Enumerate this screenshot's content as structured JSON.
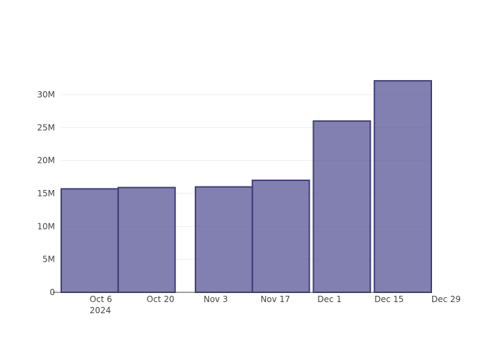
{
  "chart_data": {
    "type": "bar",
    "title": "",
    "xlabel": "",
    "ylabel": "",
    "bars": [
      {
        "start": "2024-09-29",
        "end": "2024-10-12",
        "value": 15700000
      },
      {
        "start": "2024-10-13",
        "end": "2024-10-26",
        "value": 15900000
      },
      {
        "start": "2024-11-01",
        "end": "2024-11-14",
        "value": 16000000
      },
      {
        "start": "2024-11-15",
        "end": "2024-11-28",
        "value": 17000000
      },
      {
        "start": "2024-11-30",
        "end": "2024-12-13",
        "value": 26000000
      },
      {
        "start": "2024-12-15",
        "end": "2024-12-28",
        "value": 32100000
      }
    ],
    "x_ticks": [
      {
        "date": "2024-10-06",
        "label": "Oct 6",
        "sublabel": "2024"
      },
      {
        "date": "2024-10-20",
        "label": "Oct 20"
      },
      {
        "date": "2024-11-03",
        "label": "Nov 3"
      },
      {
        "date": "2024-11-17",
        "label": "Nov 17"
      },
      {
        "date": "2024-12-01",
        "label": "Dec 1"
      },
      {
        "date": "2024-12-15",
        "label": "Dec 15"
      },
      {
        "date": "2024-12-29",
        "label": "Dec 29"
      }
    ],
    "y_ticks": [
      {
        "value": 0,
        "label": "0"
      },
      {
        "value": 5000000,
        "label": "5M"
      },
      {
        "value": 10000000,
        "label": "10M"
      },
      {
        "value": 15000000,
        "label": "15M"
      },
      {
        "value": 20000000,
        "label": "20M"
      },
      {
        "value": 25000000,
        "label": "25M"
      },
      {
        "value": 30000000,
        "label": "30M"
      }
    ],
    "xlim": [
      "2024-09-29",
      "2024-12-29"
    ],
    "ylim": [
      0,
      33800000
    ],
    "grid": true,
    "colors": {
      "bar_fill": "#5d5c9b",
      "bar_stroke": "#3f3e78",
      "grid": "#eeeeee",
      "axis": "#444444"
    }
  }
}
